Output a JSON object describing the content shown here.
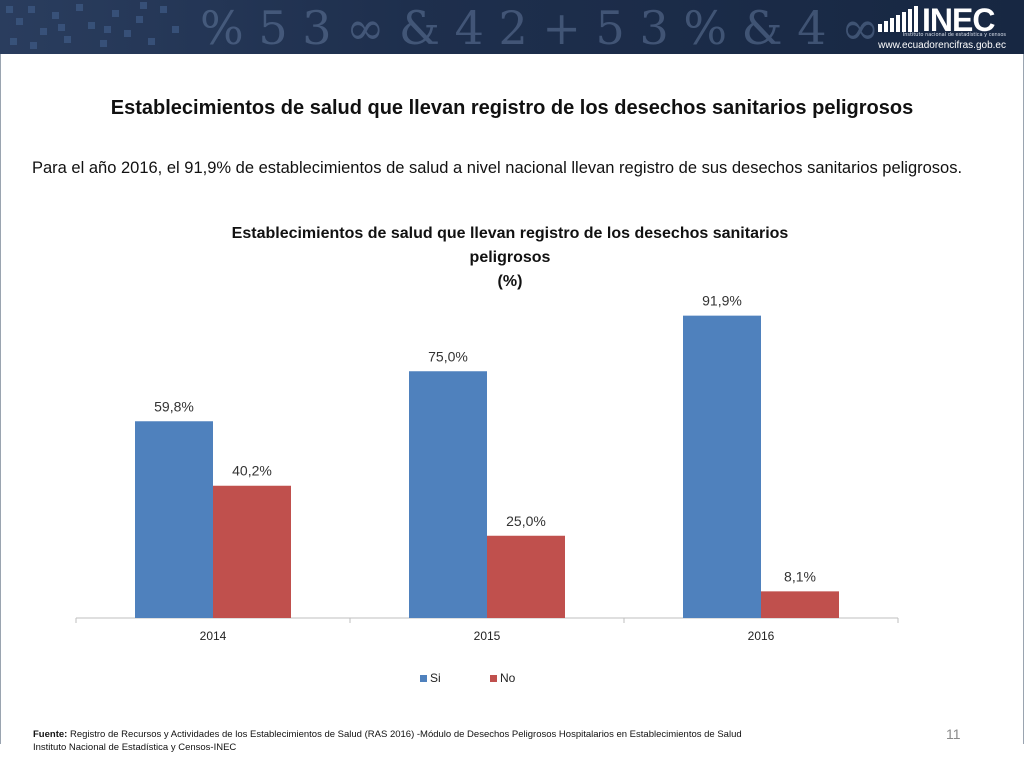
{
  "header": {
    "logo_text": "INEC",
    "logo_subtitle": "Instituto nacional de estadística y censos",
    "website": "www.ecuadorencifras.gob.ec"
  },
  "slide": {
    "title": "Establecimientos de salud que llevan  registro de los desechos sanitarios peligrosos",
    "intro": "Para el año 2016, el 91,9% de establecimientos de salud a nivel nacional llevan registro de sus desechos sanitarios peligrosos.",
    "page_number": "11"
  },
  "footer": {
    "source_label": "Fuente:",
    "source_text": " Registro de Recursos y Actividades de los Establecimientos de Salud (RAS 2016) -Módulo de Desechos Peligrosos Hospitalarios en Establecimientos de Salud",
    "institution": "Instituto Nacional de Estadística y Censos-INEC"
  },
  "chart_data": {
    "type": "bar",
    "title_lines": [
      "Establecimientos de salud que llevan  registro de los desechos sanitarios",
      "peligrosos",
      "(%)"
    ],
    "categories": [
      "2014",
      "2015",
      "2016"
    ],
    "series": [
      {
        "name": "Si",
        "color": "#4f81bd",
        "values": [
          59.8,
          75.0,
          91.9
        ],
        "labels": [
          "59,8%",
          "75,0%",
          "91,9%"
        ]
      },
      {
        "name": "No",
        "color": "#c0504d",
        "values": [
          40.2,
          25.0,
          8.1
        ],
        "labels": [
          "40,2%",
          "25,0%",
          "8,1%"
        ]
      }
    ],
    "xlabel": "",
    "ylabel": "",
    "ylim": [
      0,
      100
    ],
    "grid": false,
    "legend": "bottom"
  }
}
